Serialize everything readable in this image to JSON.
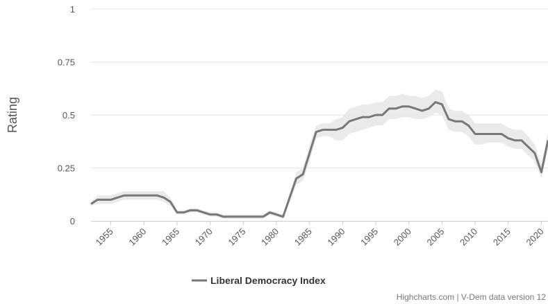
{
  "chart_data": {
    "type": "line",
    "title": "",
    "xlabel": "",
    "ylabel": "Rating",
    "ylim": [
      0,
      1
    ],
    "xlim": [
      1952,
      2021
    ],
    "y_ticks": [
      "0",
      "0.25",
      "0.5",
      "0.75",
      "1"
    ],
    "x_ticks": [
      "1955",
      "1960",
      "1965",
      "1970",
      "1975",
      "1980",
      "1985",
      "1990",
      "1995",
      "2000",
      "2005",
      "2010",
      "2015",
      "2020"
    ],
    "grid": true,
    "legend_position": "bottom-center",
    "series": [
      {
        "name": "Liberal Democracy Index",
        "color": "#777777",
        "band_color": "#e6e6e6",
        "x": [
          1952,
          1953,
          1954,
          1955,
          1956,
          1957,
          1958,
          1959,
          1960,
          1961,
          1962,
          1963,
          1964,
          1965,
          1966,
          1967,
          1968,
          1969,
          1970,
          1971,
          1972,
          1973,
          1974,
          1975,
          1976,
          1977,
          1978,
          1979,
          1980,
          1981,
          1982,
          1983,
          1984,
          1985,
          1986,
          1987,
          1988,
          1989,
          1990,
          1991,
          1992,
          1993,
          1994,
          1995,
          1996,
          1997,
          1998,
          1999,
          2000,
          2001,
          2002,
          2003,
          2004,
          2005,
          2006,
          2007,
          2008,
          2009,
          2010,
          2011,
          2012,
          2013,
          2014,
          2015,
          2016,
          2017,
          2018,
          2019,
          2020,
          2021
        ],
        "values": [
          0.08,
          0.1,
          0.1,
          0.1,
          0.11,
          0.12,
          0.12,
          0.12,
          0.12,
          0.12,
          0.12,
          0.11,
          0.09,
          0.04,
          0.04,
          0.05,
          0.05,
          0.04,
          0.03,
          0.03,
          0.02,
          0.02,
          0.02,
          0.02,
          0.02,
          0.02,
          0.02,
          0.04,
          0.03,
          0.02,
          0.11,
          0.2,
          0.22,
          0.32,
          0.42,
          0.43,
          0.43,
          0.43,
          0.44,
          0.47,
          0.48,
          0.49,
          0.49,
          0.5,
          0.5,
          0.53,
          0.53,
          0.54,
          0.54,
          0.53,
          0.52,
          0.53,
          0.56,
          0.55,
          0.48,
          0.47,
          0.47,
          0.45,
          0.41,
          0.41,
          0.41,
          0.41,
          0.41,
          0.39,
          0.38,
          0.38,
          0.35,
          0.32,
          0.23,
          0.38
        ],
        "lower": [
          0.07,
          0.08,
          0.08,
          0.08,
          0.09,
          0.1,
          0.1,
          0.1,
          0.1,
          0.1,
          0.1,
          0.09,
          0.07,
          0.03,
          0.03,
          0.04,
          0.04,
          0.03,
          0.02,
          0.02,
          0.01,
          0.01,
          0.01,
          0.01,
          0.01,
          0.01,
          0.01,
          0.03,
          0.02,
          0.01,
          0.09,
          0.17,
          0.19,
          0.28,
          0.39,
          0.4,
          0.4,
          0.38,
          0.38,
          0.41,
          0.42,
          0.43,
          0.44,
          0.45,
          0.45,
          0.48,
          0.48,
          0.49,
          0.49,
          0.48,
          0.48,
          0.49,
          0.51,
          0.5,
          0.43,
          0.42,
          0.42,
          0.4,
          0.36,
          0.36,
          0.37,
          0.37,
          0.37,
          0.35,
          0.34,
          0.34,
          0.31,
          0.28,
          0.2,
          0.34
        ],
        "upper": [
          0.09,
          0.12,
          0.12,
          0.12,
          0.13,
          0.14,
          0.14,
          0.14,
          0.14,
          0.14,
          0.14,
          0.14,
          0.11,
          0.05,
          0.05,
          0.06,
          0.06,
          0.05,
          0.04,
          0.04,
          0.03,
          0.03,
          0.03,
          0.03,
          0.03,
          0.03,
          0.03,
          0.05,
          0.04,
          0.03,
          0.13,
          0.23,
          0.25,
          0.36,
          0.45,
          0.46,
          0.46,
          0.48,
          0.49,
          0.53,
          0.54,
          0.55,
          0.55,
          0.56,
          0.56,
          0.59,
          0.59,
          0.6,
          0.59,
          0.59,
          0.58,
          0.59,
          0.62,
          0.61,
          0.53,
          0.52,
          0.52,
          0.5,
          0.46,
          0.46,
          0.46,
          0.46,
          0.46,
          0.44,
          0.43,
          0.43,
          0.4,
          0.36,
          0.27,
          0.42
        ]
      }
    ]
  },
  "credits": "Highcharts.com | V-Dem data version 12"
}
